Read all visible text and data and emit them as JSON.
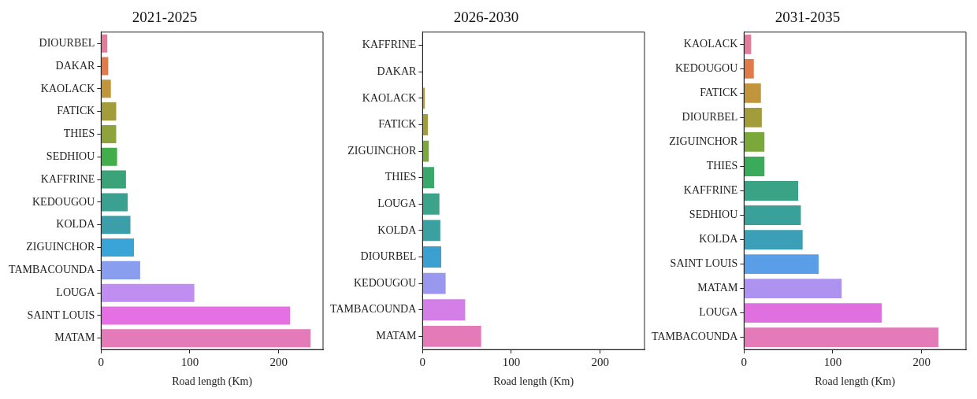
{
  "chart_data": [
    {
      "type": "bar",
      "orientation": "horizontal",
      "title": "2021-2025",
      "xlabel": "Road length (Km)",
      "categories": [
        "DIOURBEL",
        "DAKAR",
        "KAOLACK",
        "FATICK",
        "THIES",
        "SEDHIOU",
        "KAFFRINE",
        "KEDOUGOU",
        "KOLDA",
        "ZIGUINCHOR",
        "TAMBACOUNDA",
        "LOUGA",
        "SAINT LOUIS",
        "MATAM"
      ],
      "values": [
        7,
        8,
        11,
        17,
        17,
        18,
        28,
        30,
        33,
        37,
        44,
        105,
        213,
        236
      ],
      "colors": [
        "#e27c9b",
        "#e07b4a",
        "#c0953b",
        "#a39c3a",
        "#8ea43a",
        "#42ae4b",
        "#3aa37a",
        "#3aa08f",
        "#3b9ea8",
        "#3ba4d6",
        "#8a9ef0",
        "#c08ef0",
        "#e470e3",
        "#e57ab8"
      ],
      "xlim": [
        0,
        250
      ],
      "xticks": [
        0,
        100,
        200
      ]
    },
    {
      "type": "bar",
      "orientation": "horizontal",
      "title": "2026-2030",
      "xlabel": "Road length (Km)",
      "categories": [
        "KAFFRINE",
        "DAKAR",
        "KAOLACK",
        "FATICK",
        "ZIGUINCHOR",
        "THIES",
        "LOUGA",
        "KOLDA",
        "DIOURBEL",
        "KEDOUGOU",
        "TAMBACOUNDA",
        "MATAM"
      ],
      "values": [
        0,
        0,
        2.5,
        6,
        7,
        13,
        19,
        20,
        21,
        26,
        48,
        66
      ],
      "colors": [
        "#e27c9b",
        "#e07b4a",
        "#c0953b",
        "#a39c3a",
        "#7aa83a",
        "#3aa86a",
        "#3aa38a",
        "#3aa0a0",
        "#3ba0d0",
        "#9a98ee",
        "#d47ee8",
        "#e57ab8"
      ],
      "xlim": [
        0,
        250
      ],
      "xticks": [
        0,
        100,
        200
      ]
    },
    {
      "type": "bar",
      "orientation": "horizontal",
      "title": "2031-2035",
      "xlabel": "Road length (Km)",
      "categories": [
        "KAOLACK",
        "KEDOUGOU",
        "FATICK",
        "DIOURBEL",
        "ZIGUINCHOR",
        "THIES",
        "KAFFRINE",
        "SEDHIOU",
        "KOLDA",
        "SAINT LOUIS",
        "MATAM",
        "LOUGA",
        "TAMBACOUNDA"
      ],
      "values": [
        8,
        11,
        19,
        20,
        23,
        23,
        61,
        64,
        66,
        84,
        110,
        155,
        219
      ],
      "colors": [
        "#e27c9b",
        "#e07b4a",
        "#c0953b",
        "#a39c3a",
        "#7aa83a",
        "#3aab5a",
        "#3aa385",
        "#3aa09a",
        "#3b9fb8",
        "#5a9ee8",
        "#ad92ef",
        "#e070e0",
        "#e57ab8"
      ],
      "xlim": [
        0,
        250
      ],
      "xticks": [
        0,
        100,
        200
      ]
    }
  ]
}
